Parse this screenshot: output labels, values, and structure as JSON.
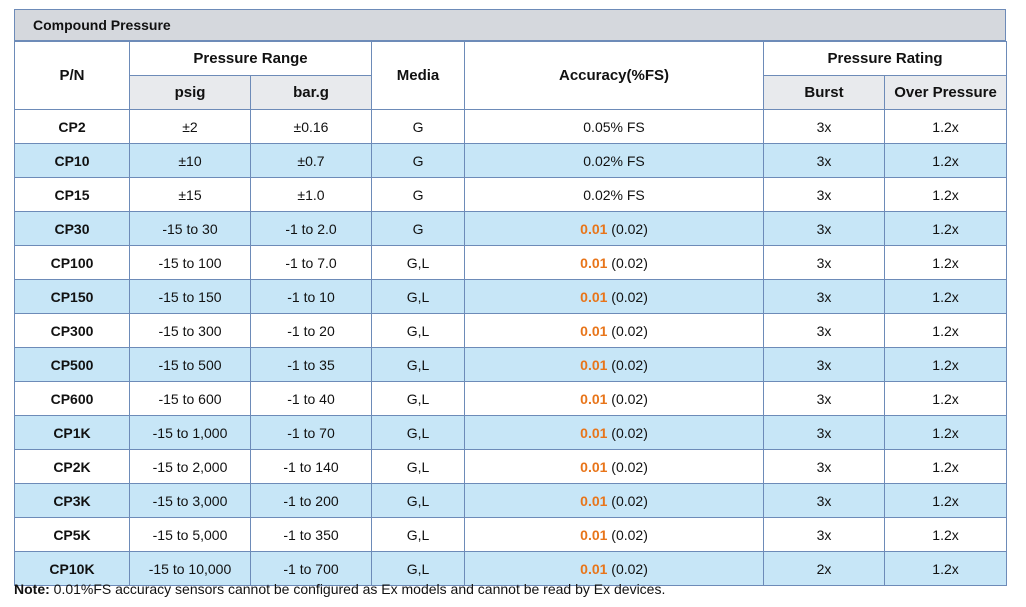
{
  "title": "Compound Pressure",
  "headers": {
    "pn": "P/N",
    "pressure_range": "Pressure Range",
    "psig": "psig",
    "barg": "bar.g",
    "media": "Media",
    "accuracy": "Accuracy(%FS)",
    "pressure_rating": "Pressure Rating",
    "burst": "Burst",
    "over_pressure": "Over Pressure"
  },
  "rows": [
    {
      "pn": "CP2",
      "psig": "±2",
      "barg": "±0.16",
      "media": "G",
      "acc_hi": "",
      "acc_rest": "0.05% FS",
      "burst": "3x",
      "over": "1.2x"
    },
    {
      "pn": "CP10",
      "psig": "±10",
      "barg": "±0.7",
      "media": "G",
      "acc_hi": "",
      "acc_rest": "0.02% FS",
      "burst": "3x",
      "over": "1.2x"
    },
    {
      "pn": "CP15",
      "psig": "±15",
      "barg": "±1.0",
      "media": "G",
      "acc_hi": "",
      "acc_rest": "0.02% FS",
      "burst": "3x",
      "over": "1.2x"
    },
    {
      "pn": "CP30",
      "psig": "-15 to 30",
      "barg": "-1 to 2.0",
      "media": "G",
      "acc_hi": "0.01",
      "acc_rest": " (0.02)",
      "burst": "3x",
      "over": "1.2x"
    },
    {
      "pn": "CP100",
      "psig": "-15 to 100",
      "barg": "-1 to 7.0",
      "media": "G,L",
      "acc_hi": "0.01",
      "acc_rest": " (0.02)",
      "burst": "3x",
      "over": "1.2x"
    },
    {
      "pn": "CP150",
      "psig": "-15 to 150",
      "barg": "-1 to 10",
      "media": "G,L",
      "acc_hi": "0.01",
      "acc_rest": " (0.02)",
      "burst": "3x",
      "over": "1.2x"
    },
    {
      "pn": "CP300",
      "psig": "-15 to 300",
      "barg": "-1 to 20",
      "media": "G,L",
      "acc_hi": "0.01",
      "acc_rest": " (0.02)",
      "burst": "3x",
      "over": "1.2x"
    },
    {
      "pn": "CP500",
      "psig": "-15 to 500",
      "barg": "-1 to 35",
      "media": "G,L",
      "acc_hi": "0.01",
      "acc_rest": " (0.02)",
      "burst": "3x",
      "over": "1.2x"
    },
    {
      "pn": "CP600",
      "psig": "-15 to 600",
      "barg": "-1 to 40",
      "media": "G,L",
      "acc_hi": "0.01",
      "acc_rest": " (0.02)",
      "burst": "3x",
      "over": "1.2x"
    },
    {
      "pn": "CP1K",
      "psig": "-15 to 1,000",
      "barg": "-1 to 70",
      "media": "G,L",
      "acc_hi": "0.01",
      "acc_rest": " (0.02)",
      "burst": "3x",
      "over": "1.2x"
    },
    {
      "pn": "CP2K",
      "psig": "-15 to 2,000",
      "barg": "-1 to 140",
      "media": "G,L",
      "acc_hi": "0.01",
      "acc_rest": " (0.02)",
      "burst": "3x",
      "over": "1.2x"
    },
    {
      "pn": "CP3K",
      "psig": "-15 to 3,000",
      "barg": "-1 to 200",
      "media": "G,L",
      "acc_hi": "0.01",
      "acc_rest": " (0.02)",
      "burst": "3x",
      "over": "1.2x"
    },
    {
      "pn": "CP5K",
      "psig": "-15 to 5,000",
      "barg": "-1 to 350",
      "media": "G,L",
      "acc_hi": "0.01",
      "acc_rest": " (0.02)",
      "burst": "3x",
      "over": "1.2x"
    },
    {
      "pn": "CP10K",
      "psig": "-15 to 10,000",
      "barg": "-1 to 700",
      "media": "G,L",
      "acc_hi": "0.01",
      "acc_rest": " (0.02)",
      "burst": "2x",
      "over": "1.2x"
    }
  ],
  "note": {
    "label": "Note:",
    "text": " 0.01%FS accuracy sensors cannot be configured as Ex models and cannot be read by Ex devices."
  },
  "colors": {
    "accent_orange": "#e8751a",
    "row_alt": "#c7e6f7",
    "border": "#6d8bb8"
  }
}
